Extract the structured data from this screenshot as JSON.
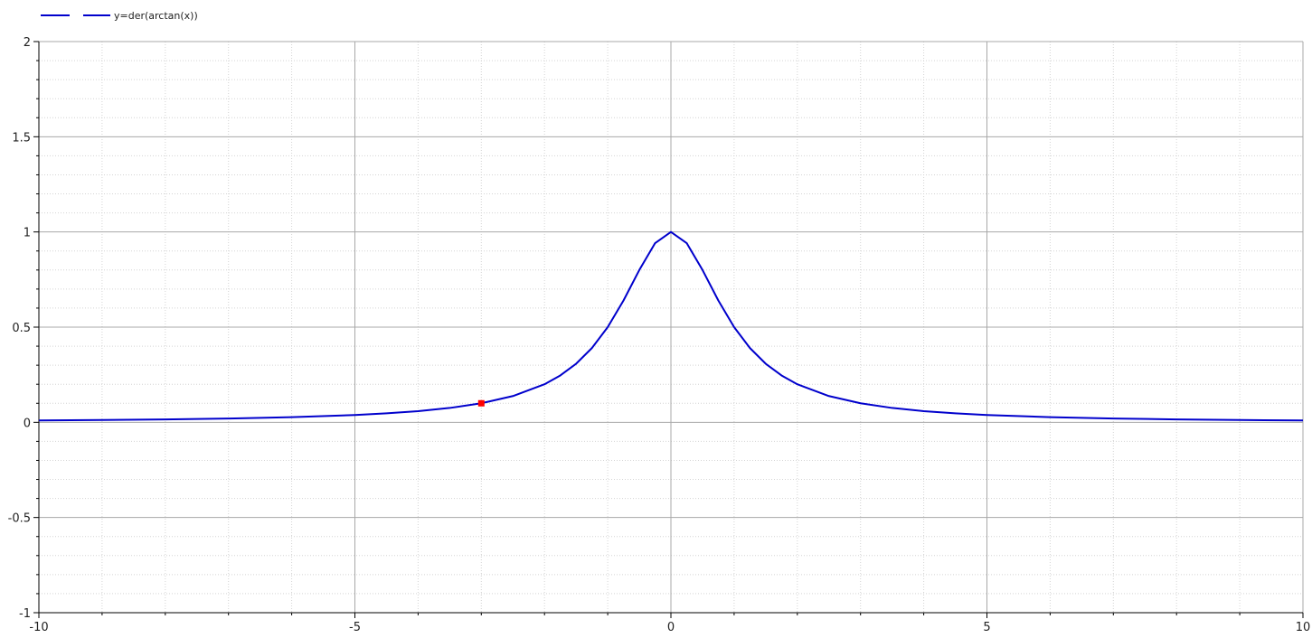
{
  "chart_data": {
    "type": "line",
    "title": "",
    "xlabel": "",
    "ylabel": "",
    "xlim": [
      -10,
      10
    ],
    "ylim": [
      -1,
      2
    ],
    "x_ticks": [
      -10,
      -5,
      0,
      5,
      10
    ],
    "x_tick_labels": [
      "-10",
      "-5",
      "0",
      "5",
      "10"
    ],
    "y_ticks": [
      -1,
      -0.5,
      0,
      0.5,
      1,
      1.5,
      2
    ],
    "y_tick_labels": [
      "-1",
      "-0.5",
      "0",
      "0.5",
      "1",
      "1.5",
      "2"
    ],
    "grid": true,
    "legend_position": "top-left",
    "series": [
      {
        "name": "y=der(arctan(x))",
        "color": "#0000cc",
        "x": [
          -10,
          -9,
          -8,
          -7,
          -6,
          -5,
          -4.5,
          -4,
          -3.5,
          -3,
          -2.5,
          -2,
          -1.75,
          -1.5,
          -1.25,
          -1,
          -0.75,
          -0.5,
          -0.25,
          0,
          0.25,
          0.5,
          0.75,
          1,
          1.25,
          1.5,
          1.75,
          2,
          2.5,
          3,
          3.5,
          4,
          4.5,
          5,
          6,
          7,
          8,
          9,
          10
        ],
        "y": [
          0.0099,
          0.0122,
          0.0154,
          0.02,
          0.027,
          0.0385,
          0.047,
          0.0588,
          0.0755,
          0.1,
          0.1379,
          0.2,
          0.2462,
          0.3077,
          0.3902,
          0.5,
          0.64,
          0.8,
          0.9412,
          1,
          0.9412,
          0.8,
          0.64,
          0.5,
          0.3902,
          0.3077,
          0.2462,
          0.2,
          0.1379,
          0.1,
          0.0755,
          0.0588,
          0.047,
          0.0385,
          0.027,
          0.02,
          0.0154,
          0.0122,
          0.0099
        ]
      }
    ],
    "marker": {
      "x": -3,
      "y": 0.1,
      "color": "#ff0000"
    }
  }
}
